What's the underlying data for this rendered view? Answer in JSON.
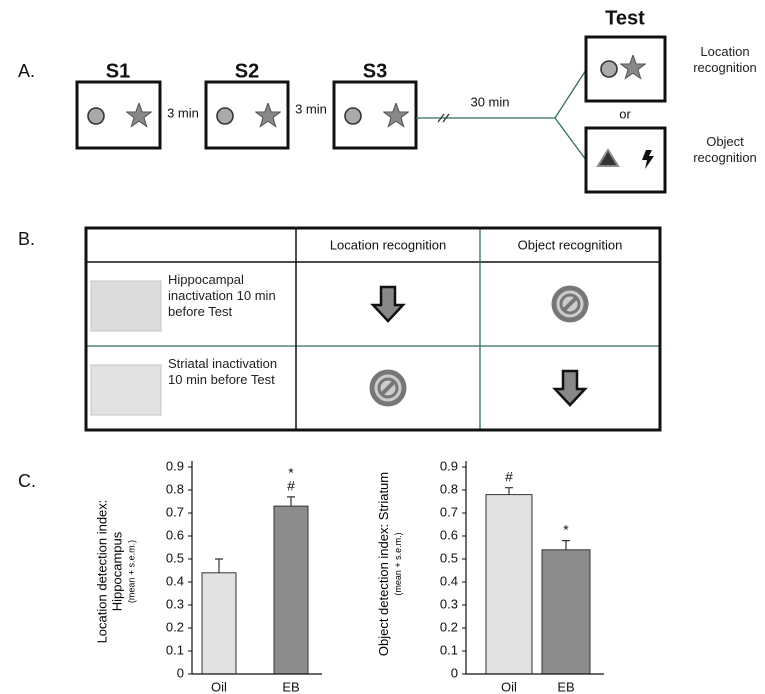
{
  "panel_a": {
    "label": "A.",
    "sessions": [
      "S1",
      "S2",
      "S3"
    ],
    "intervals": [
      "3 min",
      "3 min"
    ],
    "delay": "30 min",
    "test": "Test",
    "or": "or",
    "test_labels": [
      "Location recognition",
      "Object recognition"
    ]
  },
  "panel_b": {
    "label": "B.",
    "columns": [
      "Location recognition",
      "Object recognition"
    ],
    "rows": [
      "Hippocampal inactivation 10 min before Test",
      "Striatal inactivation 10 min before Test"
    ]
  },
  "panel_c": {
    "label": "C."
  },
  "chart_data": [
    {
      "type": "bar",
      "ylabel": "Location detection index: Hippocampus",
      "ylabel_note": "(mean + s.e.m.)",
      "categories": [
        "Oil",
        "EB"
      ],
      "values": [
        0.44,
        0.73
      ],
      "errors": [
        0.06,
        0.04
      ],
      "colors": [
        "#e2e2e2",
        "#8c8c8c"
      ],
      "annotations": [
        null,
        [
          "*",
          "#"
        ]
      ],
      "ylim": [
        0,
        0.9
      ],
      "yticks": [
        0,
        0.1,
        0.2,
        0.3,
        0.4,
        0.5,
        0.6,
        0.7,
        0.8,
        0.9
      ]
    },
    {
      "type": "bar",
      "ylabel": "Object detection index: Striatum",
      "ylabel_note": "(mean + s.e.m.)",
      "categories": [
        "Oil",
        "EB"
      ],
      "values": [
        0.78,
        0.54
      ],
      "errors": [
        0.03,
        0.04
      ],
      "colors": [
        "#e2e2e2",
        "#8c8c8c"
      ],
      "annotations": [
        [
          "#"
        ],
        [
          "*"
        ]
      ],
      "ylim": [
        0,
        0.9
      ],
      "yticks": [
        0,
        0.1,
        0.2,
        0.3,
        0.4,
        0.5,
        0.6,
        0.7,
        0.8,
        0.9
      ]
    }
  ]
}
